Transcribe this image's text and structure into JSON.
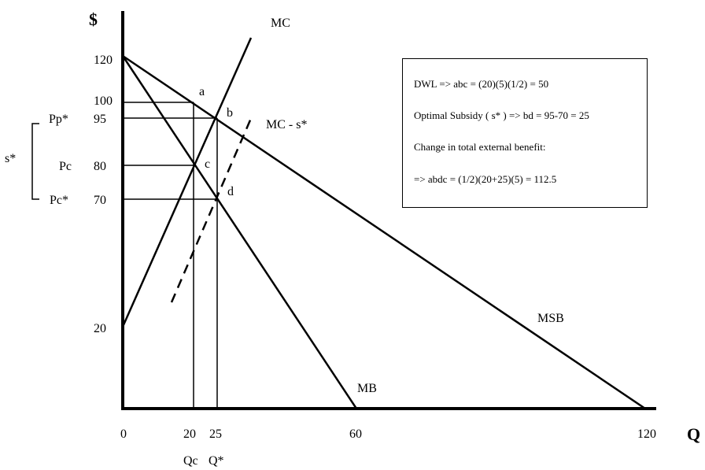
{
  "axes": {
    "y_title": "$",
    "x_title": "Q",
    "y_ticks": [
      {
        "key": "120",
        "text": "120"
      },
      {
        "key": "100",
        "text": "100"
      },
      {
        "key": "95",
        "text": "95"
      },
      {
        "key": "80",
        "text": "80"
      },
      {
        "key": "70",
        "text": "70"
      },
      {
        "key": "20",
        "text": "20"
      }
    ],
    "x_ticks": [
      "0",
      "20",
      "25",
      "60",
      "120"
    ]
  },
  "price_labels": {
    "pp_star": "Pp*",
    "pc": "Pc",
    "pc_star": "Pc*",
    "s_star": "s*"
  },
  "quantity_labels": {
    "qc": "Qc",
    "q_star": "Q*"
  },
  "curve_labels": {
    "mc": "MC",
    "mc_minus_s": "MC - s*",
    "msb": "MSB",
    "mb": "MB"
  },
  "point_labels": {
    "a": "a",
    "b": "b",
    "c": "c",
    "d": "d"
  },
  "notes": [
    "DWL => abc = (20)(5)(1/2) = 50",
    "Optimal Subsidy  ( s* ) => bd = 95-70 = 25",
    "Change in total external benefit:",
    " => abdc = (1/2)(20+25)(5) = 112.5"
  ]
}
